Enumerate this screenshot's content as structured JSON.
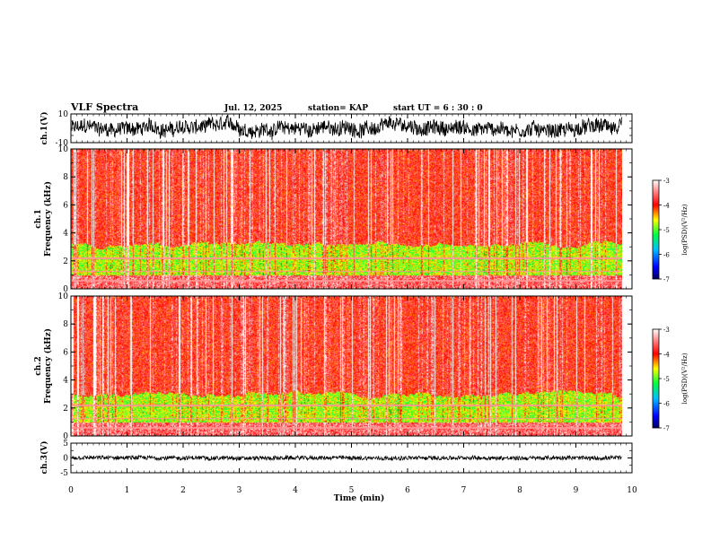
{
  "header": {
    "title": "VLF Spectra",
    "date": "Jul. 12, 2025",
    "station": "station= KAP",
    "start_time": "start  UT =  6 : 30 : 0"
  },
  "chart_data": [
    {
      "type": "line",
      "name": "ch1-waveform",
      "ylabel": "ch.1(V)",
      "ylim": [
        -10,
        10
      ],
      "yticks": [
        "10",
        "-10"
      ],
      "xlim": [
        0,
        10
      ],
      "data_end_min": 9.82
    },
    {
      "type": "heatmap",
      "name": "ch1-spectrogram",
      "ylabel": "ch.1\nFrequency (kHz)",
      "ylim": [
        0,
        10
      ],
      "yticks": [
        "0",
        "2",
        "4",
        "6",
        "8",
        "10"
      ],
      "xlim": [
        0,
        10
      ],
      "data_end_min": 9.82,
      "colorbar": {
        "label": "log(PSD)(V²/Hz)",
        "range": [
          -7,
          -3
        ],
        "ticks": [
          "-3",
          "-4",
          "-5",
          "-6",
          "-7"
        ]
      },
      "dominant_level": -3.9,
      "bands_khz": [
        {
          "from": 0,
          "to": 1.0,
          "level": -3.6
        },
        {
          "from": 1.0,
          "to": 3.2,
          "level": -4.8
        },
        {
          "from": 3.2,
          "to": 10,
          "level": -3.9
        }
      ]
    },
    {
      "type": "heatmap",
      "name": "ch2-spectrogram",
      "ylabel": "ch.2\nFrequency (kHz)",
      "ylim": [
        0,
        10
      ],
      "yticks": [
        "0",
        "2",
        "4",
        "6",
        "8",
        "10"
      ],
      "xlim": [
        0,
        10
      ],
      "data_end_min": 9.82,
      "colorbar": {
        "label": "log(PSD)(V²/Hz)",
        "range": [
          -7,
          -3
        ],
        "ticks": [
          "-3",
          "-4",
          "-5",
          "-6",
          "-7"
        ]
      },
      "dominant_level": -3.9,
      "bands_khz": [
        {
          "from": 0,
          "to": 1.0,
          "level": -3.6
        },
        {
          "from": 1.0,
          "to": 3.0,
          "level": -4.8
        },
        {
          "from": 3.0,
          "to": 10,
          "level": -3.9
        }
      ]
    },
    {
      "type": "line",
      "name": "ch3-waveform",
      "ylabel": "ch.3(V)",
      "ylim": [
        -5,
        5
      ],
      "yticks": [
        "5",
        "0",
        "-5"
      ],
      "xlim": [
        0,
        10
      ],
      "data_end_min": 9.82,
      "xlabel": "Time (min)",
      "xticks": [
        "0",
        "1",
        "2",
        "3",
        "4",
        "5",
        "6",
        "7",
        "8",
        "9",
        "10"
      ]
    }
  ],
  "colors": {
    "low": "#000080",
    "mid": "#00e000",
    "high": "#e00000",
    "top": "#ffffff"
  }
}
